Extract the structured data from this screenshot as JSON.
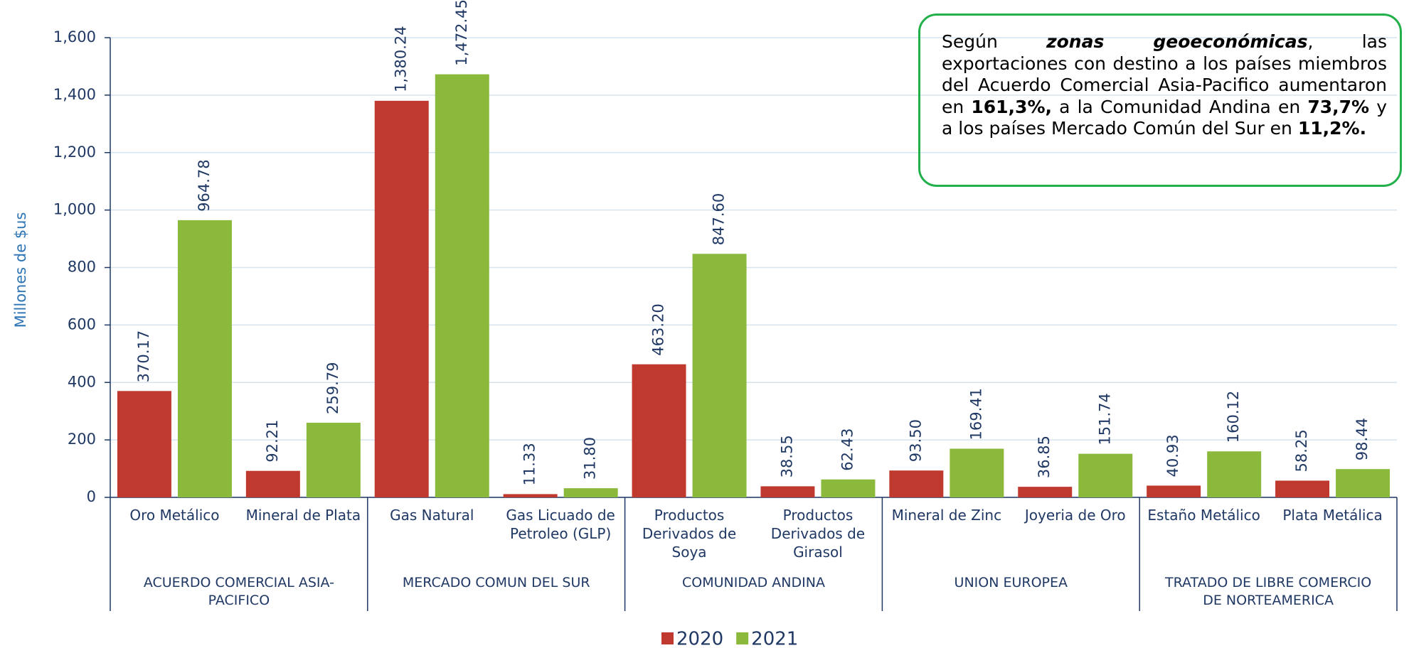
{
  "chart_data": {
    "type": "bar",
    "y_axis_label": "Millones de $us",
    "categories": [
      "Oro Metálico",
      "Mineral de Plata",
      "Gas Natural",
      "Gas Licuado de Petroleo (GLP)",
      "Productos Derivados de Soya",
      "Productos Derivados de Girasol",
      "Mineral de Zinc",
      "Joyeria de Oro",
      "Estaño Metálico",
      "Plata Metálica"
    ],
    "groups": [
      "ACUERDO COMERCIAL ASIA-PACIFICO",
      "MERCADO COMUN DEL SUR",
      "COMUNIDAD ANDINA",
      "UNION EUROPEA",
      "TRATADO DE LIBRE COMERCIO DE NORTEAMERICA"
    ],
    "series": [
      {
        "name": "2020",
        "color": "#c0392f",
        "values": [
          370.17,
          92.21,
          1380.24,
          11.33,
          463.2,
          38.55,
          93.5,
          36.85,
          40.93,
          58.25
        ],
        "value_labels": [
          "370.17",
          "92.21",
          "1,380.24",
          "11.33",
          "463.20",
          "38.55",
          "93.50",
          "36.85",
          "40.93",
          "58.25"
        ]
      },
      {
        "name": "2021",
        "color": "#8ab93c",
        "values": [
          964.78,
          259.79,
          1472.45,
          31.8,
          847.6,
          62.43,
          169.41,
          151.74,
          160.12,
          98.44
        ],
        "value_labels": [
          "964.78",
          "259.79",
          "1,472.45",
          "31.80",
          "847.60",
          "62.43",
          "169.41",
          "151.74",
          "160.12",
          "98.44"
        ]
      }
    ],
    "ylim": [
      0,
      1600
    ],
    "yticks": [
      0,
      200,
      400,
      600,
      800,
      {
        "value": 1000,
        "label": "1,000"
      },
      {
        "value": 1200,
        "label": "1,200"
      },
      {
        "value": 1400,
        "label": "1,400"
      },
      {
        "value": 1600,
        "label": "1,600"
      }
    ],
    "grid": true,
    "legend": "bottom",
    "annotation": [
      "Según",
      "zonas geoeconómicas",
      ", las exportaciones con destino a los países miembros del Acuerdo Comercial Asia-Pacifico aumentaron en",
      "161,3%,",
      "a la Comunidad Andina en",
      "73,7%",
      "y a los países Mercado Común del Sur en",
      "11,2%."
    ]
  }
}
